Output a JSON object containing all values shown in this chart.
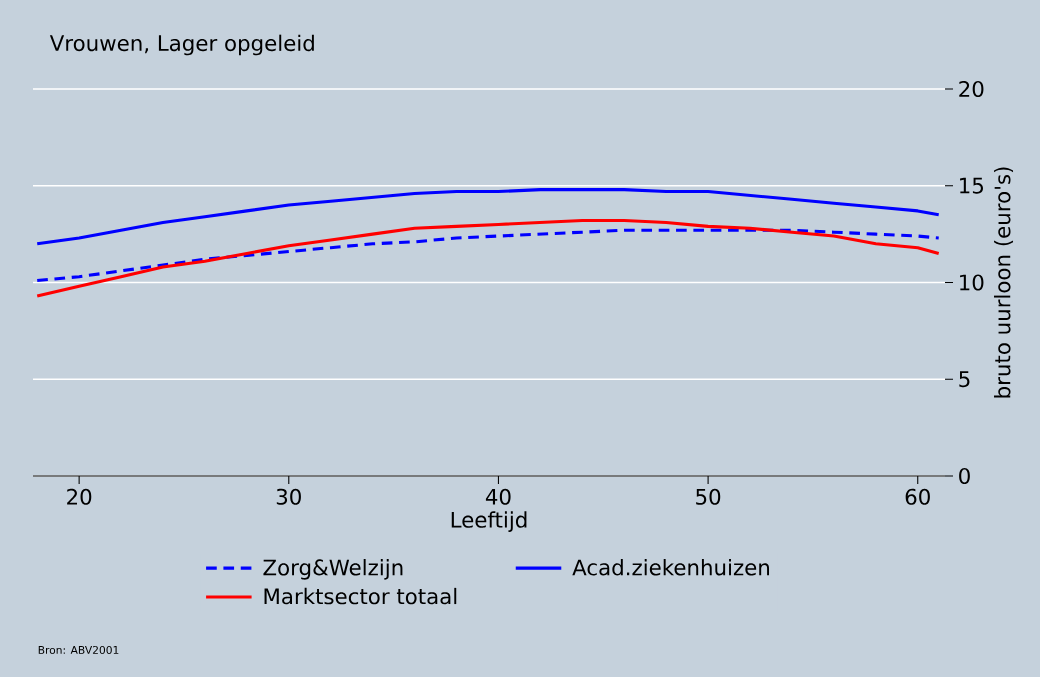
{
  "chart_data": {
    "type": "line",
    "title": "Vrouwen, Lager opgeleid",
    "xlabel": "Leeftijd",
    "ylabel": "bruto uurloon (euro's)",
    "annotations": [
      "Bron: ABV2001"
    ],
    "x": [
      18,
      20,
      22,
      24,
      26,
      28,
      30,
      32,
      34,
      36,
      38,
      40,
      42,
      44,
      46,
      48,
      50,
      52,
      54,
      56,
      58,
      60,
      61
    ],
    "series": [
      {
        "name": "Zorg&Welzijn",
        "color": "#0000ff",
        "line_style": "dashed",
        "values": [
          10.1,
          10.3,
          10.6,
          10.9,
          11.2,
          11.4,
          11.6,
          11.8,
          12.0,
          12.1,
          12.3,
          12.4,
          12.5,
          12.6,
          12.7,
          12.7,
          12.7,
          12.7,
          12.7,
          12.6,
          12.5,
          12.4,
          12.3
        ]
      },
      {
        "name": "Acad.ziekenhuizen",
        "color": "#0000ff",
        "line_style": "solid",
        "values": [
          12.0,
          12.3,
          12.7,
          13.1,
          13.4,
          13.7,
          14.0,
          14.2,
          14.4,
          14.6,
          14.7,
          14.7,
          14.8,
          14.8,
          14.8,
          14.7,
          14.7,
          14.5,
          14.3,
          14.1,
          13.9,
          13.7,
          13.5
        ]
      },
      {
        "name": "Marktsector totaal",
        "color": "#ff0000",
        "line_style": "solid",
        "values": [
          9.3,
          9.8,
          10.3,
          10.8,
          11.1,
          11.5,
          11.9,
          12.2,
          12.5,
          12.8,
          12.9,
          13.0,
          13.1,
          13.2,
          13.2,
          13.1,
          12.9,
          12.8,
          12.6,
          12.4,
          12.0,
          11.8,
          11.5
        ]
      }
    ],
    "xlim": [
      17.8,
      61.3
    ],
    "ylim": [
      0,
      20
    ],
    "xticks": [
      20,
      30,
      40,
      50,
      60
    ],
    "yticks": [
      0,
      5,
      10,
      15,
      20
    ],
    "grid": "y",
    "legend": "bottom"
  }
}
